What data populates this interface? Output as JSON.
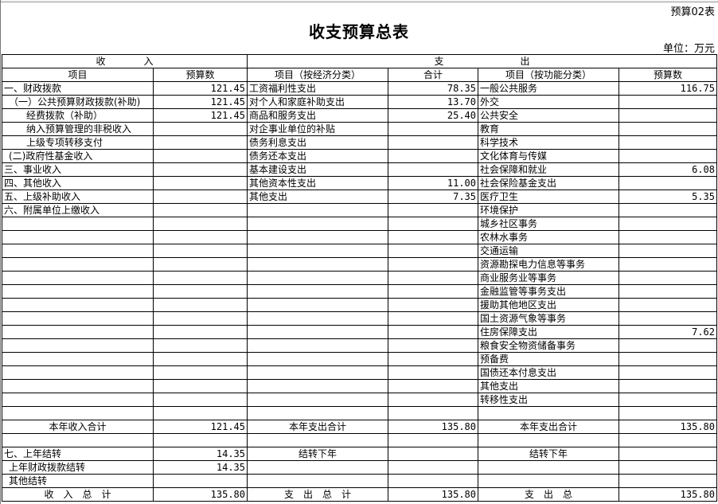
{
  "form_no": "预算02表",
  "title": "收支预算总表",
  "unit": "单位：万元",
  "header": {
    "income": "收　　　　入",
    "expense": "支　　　　　　　　出",
    "item": "项目",
    "budget": "预算数",
    "item_econ": "项目（按经济分类）",
    "total": "合计",
    "item_func": "项目（按功能分类）",
    "budget2": "预算数"
  },
  "rows": [
    {
      "in": "一、财政拨款",
      "in_v": "121.45",
      "ec": "工资福利性支出",
      "ec_v": "78.35",
      "fn": "一般公共服务",
      "fn_v": "116.75"
    },
    {
      "in": "（一）公共预算财政拨款(补助)",
      "in_v": "121.45",
      "ec": "对个人和家庭补助支出",
      "ec_v": "13.70",
      "fn": "外交",
      "fn_v": ""
    },
    {
      "in": "经费拨款（补助）",
      "in_v": "121.45",
      "ec": "商品和服务支出",
      "ec_v": "25.40",
      "fn": "公共安全",
      "fn_v": ""
    },
    {
      "in": "纳入预算管理的非税收入",
      "in_v": "",
      "ec": "对企事业单位的补贴",
      "ec_v": "",
      "fn": "教育",
      "fn_v": ""
    },
    {
      "in": "上级专项转移支付",
      "in_v": "",
      "ec": "债务利息支出",
      "ec_v": "",
      "fn": "科学技术",
      "fn_v": ""
    },
    {
      "in": "(二)政府性基金收入",
      "in_v": "",
      "ec": "债务还本支出",
      "ec_v": "",
      "fn": "文化体育与传媒",
      "fn_v": ""
    },
    {
      "in": "三、事业收入",
      "in_v": "",
      "ec": "基本建设支出",
      "ec_v": "",
      "fn": "社会保障和就业",
      "fn_v": "6.08"
    },
    {
      "in": "四、其他收入",
      "in_v": "",
      "ec": "其他资本性支出",
      "ec_v": "11.00",
      "fn": "社会保险基金支出",
      "fn_v": ""
    },
    {
      "in": "五、上级补助收入",
      "in_v": "",
      "ec": "其他支出",
      "ec_v": "7.35",
      "fn": "医疗卫生",
      "fn_v": "5.35"
    },
    {
      "in": "六、附属单位上缴收入",
      "in_v": "",
      "ec": "",
      "ec_v": "",
      "fn": "环境保护",
      "fn_v": ""
    },
    {
      "in": "",
      "in_v": "",
      "ec": "",
      "ec_v": "",
      "fn": "城乡社区事务",
      "fn_v": ""
    },
    {
      "in": "",
      "in_v": "",
      "ec": "",
      "ec_v": "",
      "fn": "农林水事务",
      "fn_v": ""
    },
    {
      "in": "",
      "in_v": "",
      "ec": "",
      "ec_v": "",
      "fn": "交通运输",
      "fn_v": ""
    },
    {
      "in": "",
      "in_v": "",
      "ec": "",
      "ec_v": "",
      "fn": "资源勘探电力信息等事务",
      "fn_v": ""
    },
    {
      "in": "",
      "in_v": "",
      "ec": "",
      "ec_v": "",
      "fn": "商业服务业等事务",
      "fn_v": ""
    },
    {
      "in": "",
      "in_v": "",
      "ec": "",
      "ec_v": "",
      "fn": "金融监管等事务支出",
      "fn_v": ""
    },
    {
      "in": "",
      "in_v": "",
      "ec": "",
      "ec_v": "",
      "fn": "援助其他地区支出",
      "fn_v": ""
    },
    {
      "in": "",
      "in_v": "",
      "ec": "",
      "ec_v": "",
      "fn": "国土资源气象等事务",
      "fn_v": ""
    },
    {
      "in": "",
      "in_v": "",
      "ec": "",
      "ec_v": "",
      "fn": "住房保障支出",
      "fn_v": "7.62"
    },
    {
      "in": "",
      "in_v": "",
      "ec": "",
      "ec_v": "",
      "fn": "粮食安全物资储备事务",
      "fn_v": ""
    },
    {
      "in": "",
      "in_v": "",
      "ec": "",
      "ec_v": "",
      "fn": "预备费",
      "fn_v": ""
    },
    {
      "in": "",
      "in_v": "",
      "ec": "",
      "ec_v": "",
      "fn": "国债还本付息支出",
      "fn_v": ""
    },
    {
      "in": "",
      "in_v": "",
      "ec": "",
      "ec_v": "",
      "fn": "其他支出",
      "fn_v": ""
    },
    {
      "in": "",
      "in_v": "",
      "ec": "",
      "ec_v": "",
      "fn": "转移性支出",
      "fn_v": ""
    }
  ],
  "indent": [
    0,
    1,
    2,
    2,
    2,
    1,
    0,
    0,
    0,
    0,
    0,
    0,
    0,
    0,
    0,
    0,
    0,
    0,
    0,
    0,
    0,
    0,
    0,
    0
  ],
  "year_total": {
    "in": "本年收入合计",
    "in_v": "121.45",
    "ec": "本年支出合计",
    "ec_v": "135.80",
    "fn": "本年支出合计",
    "fn_v": "135.80"
  },
  "carry": [
    {
      "in": "七、上年结转",
      "in_v": "14.35",
      "ec": "结转下年",
      "fn": "结转下年"
    },
    {
      "in": "上年财政拨款结转",
      "in_v": "14.35"
    },
    {
      "in": "其他结转",
      "in_v": ""
    }
  ],
  "grand_total": {
    "in": "收　入　总　计",
    "in_v": "135.80",
    "ec": "支　出　总　计",
    "ec_v": "135.80",
    "fn": "支　出　总",
    "fn_v": "135.80"
  }
}
